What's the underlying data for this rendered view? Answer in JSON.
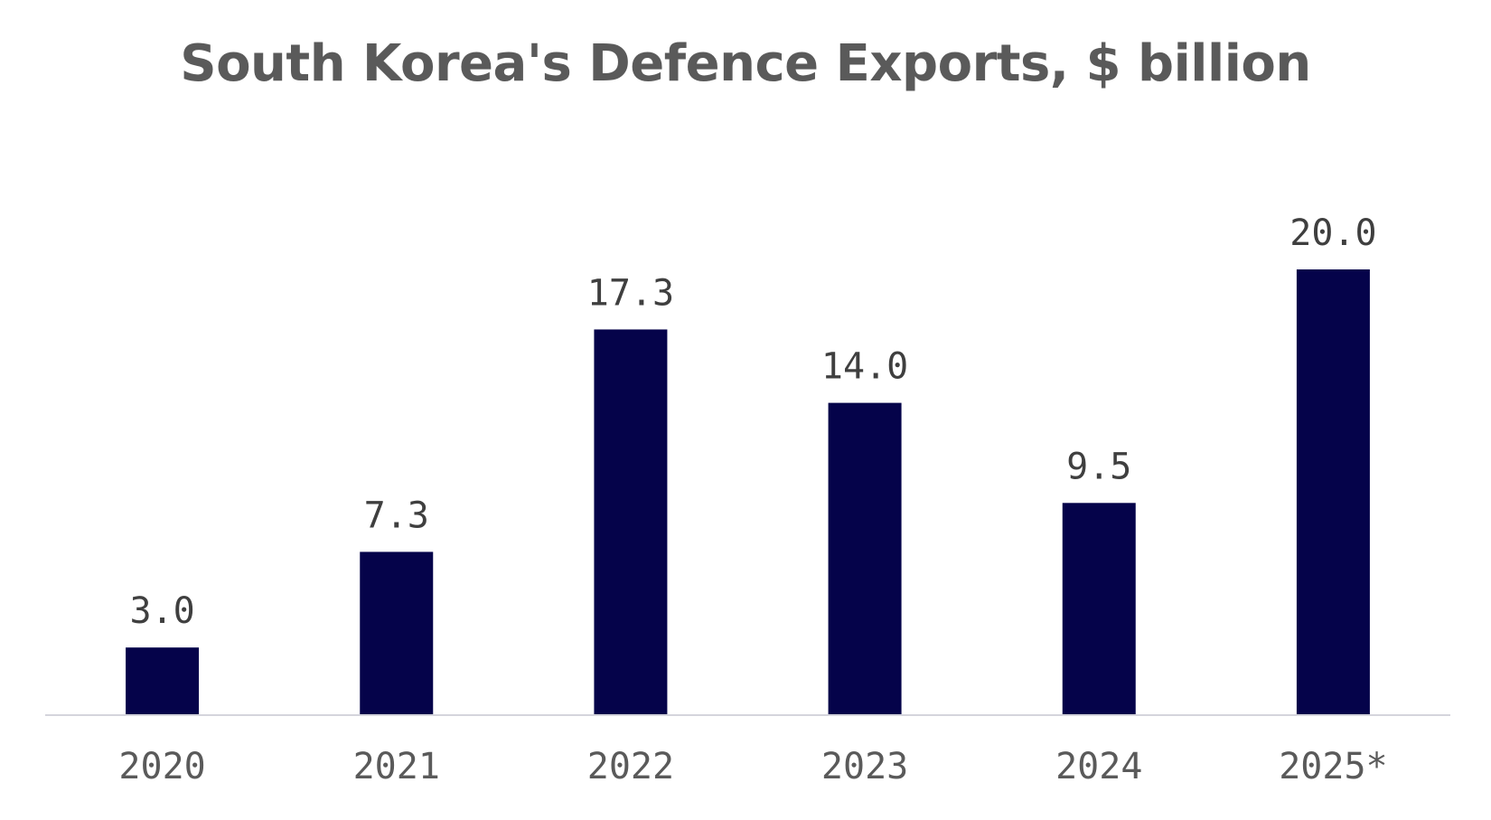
{
  "chart_data": {
    "type": "bar",
    "title": "South Korea's Defence Exports, $ billion",
    "categories": [
      "2020",
      "2021",
      "2022",
      "2023",
      "2024",
      "2025*"
    ],
    "values": [
      3.0,
      7.3,
      17.3,
      14.0,
      9.5,
      20.0
    ],
    "value_labels": [
      "3.0",
      "7.3",
      "17.3",
      "14.0",
      "9.5",
      "20.0"
    ],
    "xlabel": "",
    "ylabel": "",
    "ylim": [
      0,
      20
    ],
    "grid": false,
    "bar_color": "#05034a",
    "axis_color": "#d5d5dc"
  }
}
